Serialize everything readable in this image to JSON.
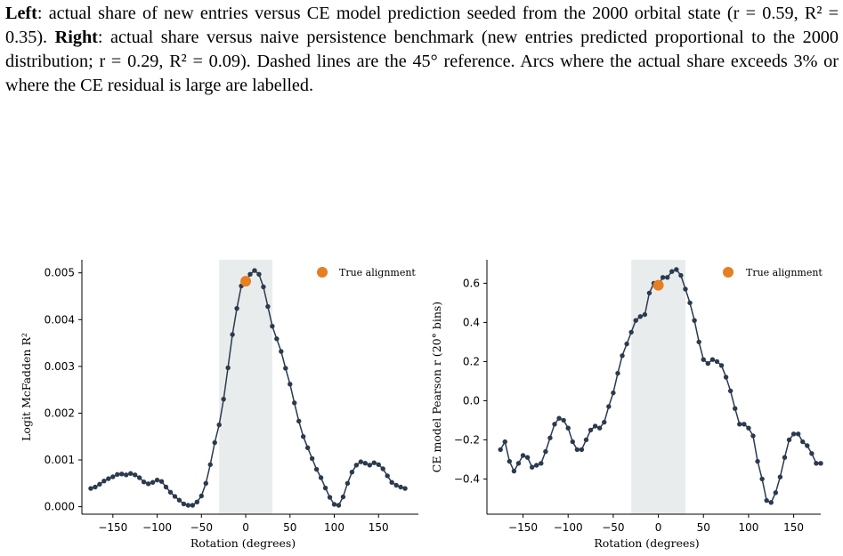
{
  "caption": {
    "left_bold": "Left",
    "left_text": ": actual share of new entries versus CE model prediction seeded from the 2000 orbital state (r = 0.59, R² = 0.35). ",
    "right_bold": "Right",
    "right_text": ": actual share versus naive persistence benchmark (new entries predicted proportional to the 2000 distribution; r = 0.29, R² = 0.09). Dashed lines are the 45° reference. Arcs where the actual share exceeds 3% or where the CE residual is large are labelled."
  },
  "colors": {
    "line": "#2b3a4e",
    "highlight": "#e67e22",
    "band": "#e9ecec",
    "axis": "#000000"
  },
  "chart_data": [
    {
      "type": "line",
      "title": "",
      "xlabel": "Rotation (degrees)",
      "ylabel": "Logit McFadden R²",
      "xlim": [
        -185,
        195
      ],
      "ylim": [
        -0.00016,
        0.00528
      ],
      "xticks": [
        -150,
        -100,
        -50,
        0,
        50,
        100,
        150
      ],
      "xtick_labels": [
        "−150",
        "−100",
        "−50",
        "0",
        "50",
        "100",
        "150"
      ],
      "yticks": [
        0.0,
        0.001,
        0.002,
        0.003,
        0.004,
        0.005
      ],
      "ytick_labels": [
        "0.000",
        "0.001",
        "0.002",
        "0.003",
        "0.004",
        "0.005"
      ],
      "shaded_band": [
        -30,
        30
      ],
      "legend": {
        "label": "True alignment",
        "position": "top-right"
      },
      "highlight_point": {
        "x": 0,
        "y": 0.00482
      },
      "x": [
        -175,
        -170,
        -165,
        -160,
        -155,
        -150,
        -145,
        -140,
        -135,
        -130,
        -125,
        -120,
        -115,
        -110,
        -105,
        -100,
        -95,
        -90,
        -85,
        -80,
        -75,
        -70,
        -65,
        -60,
        -55,
        -50,
        -45,
        -40,
        -35,
        -30,
        -25,
        -20,
        -15,
        -10,
        -5,
        0,
        5,
        10,
        15,
        20,
        25,
        30,
        35,
        40,
        45,
        50,
        55,
        60,
        65,
        70,
        75,
        80,
        85,
        90,
        95,
        100,
        105,
        110,
        115,
        120,
        125,
        130,
        135,
        140,
        145,
        150,
        155,
        160,
        165,
        170,
        175,
        180
      ],
      "values": [
        0.00039,
        0.00042,
        0.00048,
        0.00055,
        0.0006,
        0.00064,
        0.00069,
        0.0007,
        0.00068,
        0.00071,
        0.00068,
        0.00062,
        0.00053,
        0.00049,
        0.00052,
        0.00057,
        0.00054,
        0.00042,
        0.00031,
        0.00022,
        0.00014,
        6e-05,
        3e-05,
        3e-05,
        0.0001,
        0.00023,
        0.0005,
        0.0009,
        0.00137,
        0.00175,
        0.0023,
        0.00297,
        0.00368,
        0.00424,
        0.00472,
        0.00482,
        0.00497,
        0.00505,
        0.00497,
        0.0047,
        0.00428,
        0.00386,
        0.00359,
        0.00332,
        0.00296,
        0.00262,
        0.00222,
        0.00183,
        0.0015,
        0.00126,
        0.00103,
        0.0008,
        0.00062,
        0.0004,
        0.0002,
        5e-05,
        3e-05,
        0.00021,
        0.0005,
        0.00074,
        0.00089,
        0.00096,
        0.00093,
        0.00089,
        0.00094,
        0.0009,
        0.00081,
        0.00066,
        0.00052,
        0.00046,
        0.00042,
        0.00039
      ]
    },
    {
      "type": "line",
      "title": "",
      "xlabel": "Rotation (degrees)",
      "ylabel": "CE model Pearson r (20° bins)",
      "xlim": [
        -190,
        180
      ],
      "ylim": [
        -0.58,
        0.72
      ],
      "xticks": [
        -150,
        -100,
        -50,
        0,
        50,
        100,
        150
      ],
      "xtick_labels": [
        "−150",
        "−100",
        "−50",
        "0",
        "50",
        "100",
        "150"
      ],
      "yticks": [
        -0.4,
        -0.2,
        0.0,
        0.2,
        0.4,
        0.6
      ],
      "ytick_labels": [
        "−0.4",
        "−0.2",
        "0.0",
        "0.2",
        "0.4",
        "0.6"
      ],
      "shaded_band": [
        -30,
        30
      ],
      "legend": {
        "label": "True alignment",
        "position": "top-right"
      },
      "highlight_point": {
        "x": 0,
        "y": 0.59
      },
      "x": [
        -175,
        -170,
        -165,
        -160,
        -155,
        -150,
        -145,
        -140,
        -135,
        -130,
        -125,
        -120,
        -115,
        -110,
        -105,
        -100,
        -95,
        -90,
        -85,
        -80,
        -75,
        -70,
        -65,
        -60,
        -55,
        -50,
        -45,
        -40,
        -35,
        -30,
        -25,
        -20,
        -15,
        -10,
        -5,
        0,
        5,
        10,
        15,
        20,
        25,
        30,
        35,
        40,
        45,
        50,
        55,
        60,
        65,
        70,
        75,
        80,
        85,
        90,
        95,
        100,
        105,
        110,
        115,
        120,
        125,
        130,
        135,
        140,
        145,
        150,
        155,
        160,
        165,
        170,
        175,
        180
      ],
      "values": [
        -0.25,
        -0.21,
        -0.31,
        -0.36,
        -0.32,
        -0.28,
        -0.29,
        -0.34,
        -0.33,
        -0.32,
        -0.26,
        -0.19,
        -0.12,
        -0.09,
        -0.1,
        -0.14,
        -0.21,
        -0.25,
        -0.25,
        -0.2,
        -0.15,
        -0.13,
        -0.14,
        -0.11,
        -0.03,
        0.04,
        0.14,
        0.23,
        0.29,
        0.35,
        0.41,
        0.43,
        0.44,
        0.55,
        0.6,
        0.59,
        0.63,
        0.63,
        0.66,
        0.67,
        0.64,
        0.57,
        0.5,
        0.41,
        0.3,
        0.21,
        0.19,
        0.21,
        0.2,
        0.18,
        0.12,
        0.05,
        -0.04,
        -0.12,
        -0.12,
        -0.14,
        -0.18,
        -0.31,
        -0.4,
        -0.51,
        -0.52,
        -0.47,
        -0.39,
        -0.29,
        -0.2,
        -0.17,
        -0.17,
        -0.21,
        -0.23,
        -0.27,
        -0.32,
        -0.32
      ]
    }
  ]
}
